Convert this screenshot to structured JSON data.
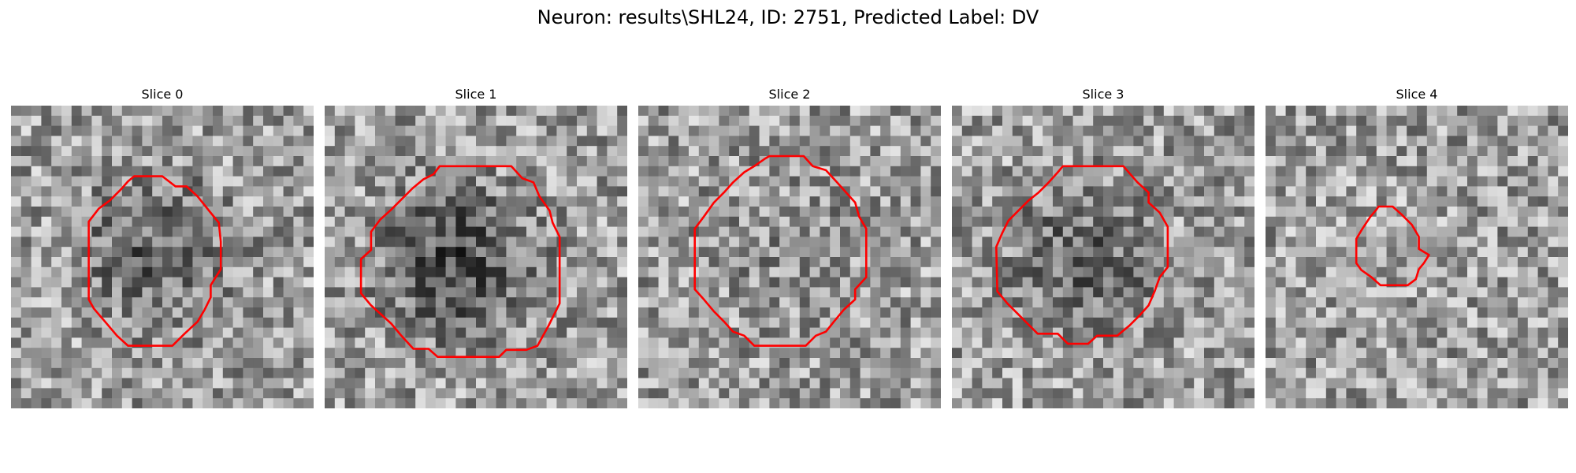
{
  "figure": {
    "title": "Neuron: results\\SHL24, ID: 2751, Predicted Label: DV"
  },
  "panels": [
    {
      "title": "Slice 0",
      "seed": 11,
      "dark_bias": 0.25,
      "outline_color": "#ff0000",
      "outline": [
        [
          12.2,
          7.0
        ],
        [
          15.0,
          7.0
        ],
        [
          16.3,
          8.0
        ],
        [
          17.4,
          8.0
        ],
        [
          18.5,
          9.0
        ],
        [
          19.7,
          10.5
        ],
        [
          20.6,
          11.6
        ],
        [
          20.8,
          13.5
        ],
        [
          20.8,
          16.2
        ],
        [
          19.8,
          17.8
        ],
        [
          19.8,
          19.0
        ],
        [
          19.2,
          20.2
        ],
        [
          18.5,
          21.4
        ],
        [
          17.2,
          22.6
        ],
        [
          16.0,
          23.8
        ],
        [
          11.6,
          23.8
        ],
        [
          10.5,
          22.8
        ],
        [
          9.4,
          21.5
        ],
        [
          8.2,
          20.1
        ],
        [
          7.7,
          19.2
        ],
        [
          7.7,
          15.0
        ],
        [
          7.7,
          11.5
        ],
        [
          8.7,
          10.2
        ],
        [
          9.8,
          9.4
        ],
        [
          10.9,
          8.3
        ],
        [
          11.6,
          7.5
        ]
      ]
    },
    {
      "title": "Slice 1",
      "seed": 29,
      "dark_bias": 0.35,
      "outline_color": "#ff0000",
      "outline": [
        [
          11.4,
          6.0
        ],
        [
          18.5,
          6.0
        ],
        [
          19.6,
          7.2
        ],
        [
          20.7,
          7.6
        ],
        [
          21.3,
          9.0
        ],
        [
          22.3,
          10.4
        ],
        [
          22.6,
          11.6
        ],
        [
          23.3,
          13.0
        ],
        [
          23.3,
          16.4
        ],
        [
          23.3,
          19.6
        ],
        [
          22.2,
          21.8
        ],
        [
          21.1,
          23.8
        ],
        [
          20.0,
          24.2
        ],
        [
          18.0,
          24.2
        ],
        [
          17.3,
          24.9
        ],
        [
          11.2,
          24.9
        ],
        [
          10.3,
          24.1
        ],
        [
          8.8,
          24.1
        ],
        [
          7.6,
          22.8
        ],
        [
          6.6,
          21.6
        ],
        [
          5.5,
          20.6
        ],
        [
          4.6,
          19.8
        ],
        [
          3.6,
          18.6
        ],
        [
          3.6,
          15.2
        ],
        [
          4.6,
          14.3
        ],
        [
          4.6,
          12.5
        ],
        [
          5.5,
          11.3
        ],
        [
          6.6,
          10.3
        ],
        [
          7.7,
          9.2
        ],
        [
          8.7,
          8.2
        ],
        [
          9.8,
          7.3
        ],
        [
          10.8,
          6.8
        ]
      ]
    },
    {
      "title": "Slice 2",
      "seed": 47,
      "dark_bias": 0.05,
      "outline_color": "#ff0000",
      "outline": [
        [
          13.0,
          5.0
        ],
        [
          16.4,
          5.0
        ],
        [
          17.3,
          6.0
        ],
        [
          18.6,
          6.4
        ],
        [
          19.7,
          7.6
        ],
        [
          20.6,
          8.6
        ],
        [
          21.5,
          9.6
        ],
        [
          21.9,
          11.0
        ],
        [
          22.6,
          12.2
        ],
        [
          22.6,
          17.0
        ],
        [
          21.5,
          18.2
        ],
        [
          21.5,
          19.2
        ],
        [
          20.4,
          20.2
        ],
        [
          19.4,
          21.4
        ],
        [
          18.6,
          22.4
        ],
        [
          17.6,
          22.8
        ],
        [
          16.6,
          23.8
        ],
        [
          11.5,
          23.8
        ],
        [
          10.5,
          22.8
        ],
        [
          9.4,
          22.4
        ],
        [
          8.5,
          21.4
        ],
        [
          7.5,
          20.4
        ],
        [
          6.5,
          19.2
        ],
        [
          5.6,
          18.2
        ],
        [
          5.6,
          12.2
        ],
        [
          6.5,
          11.0
        ],
        [
          7.5,
          9.6
        ],
        [
          8.5,
          8.6
        ],
        [
          9.4,
          7.6
        ],
        [
          10.5,
          6.6
        ],
        [
          11.5,
          6.0
        ],
        [
          12.5,
          5.3
        ]
      ]
    },
    {
      "title": "Slice 3",
      "seed": 63,
      "dark_bias": 0.22,
      "outline_color": "#ff0000",
      "outline": [
        [
          11.0,
          6.0
        ],
        [
          17.0,
          6.0
        ],
        [
          18.4,
          7.6
        ],
        [
          19.5,
          8.6
        ],
        [
          19.5,
          9.6
        ],
        [
          20.6,
          10.6
        ],
        [
          21.4,
          12.0
        ],
        [
          21.4,
          16.0
        ],
        [
          20.6,
          17.0
        ],
        [
          20.1,
          18.4
        ],
        [
          19.5,
          19.8
        ],
        [
          18.6,
          20.8
        ],
        [
          17.6,
          21.8
        ],
        [
          16.4,
          22.8
        ],
        [
          14.4,
          22.8
        ],
        [
          13.5,
          23.6
        ],
        [
          11.5,
          23.6
        ],
        [
          10.5,
          22.6
        ],
        [
          8.5,
          22.6
        ],
        [
          7.5,
          21.6
        ],
        [
          6.5,
          20.6
        ],
        [
          5.5,
          19.6
        ],
        [
          4.5,
          18.4
        ],
        [
          4.4,
          14.0
        ],
        [
          5.0,
          12.6
        ],
        [
          5.6,
          11.4
        ],
        [
          6.6,
          10.4
        ],
        [
          7.6,
          9.4
        ],
        [
          8.6,
          8.6
        ],
        [
          9.6,
          7.6
        ],
        [
          10.5,
          6.6
        ]
      ]
    },
    {
      "title": "Slice 4",
      "seed": 85,
      "dark_bias": -0.05,
      "outline_color": "#ff0000",
      "outline": [
        [
          11.2,
          10.0
        ],
        [
          12.6,
          10.0
        ],
        [
          13.5,
          10.8
        ],
        [
          14.5,
          11.8
        ],
        [
          15.2,
          13.0
        ],
        [
          15.2,
          14.2
        ],
        [
          16.2,
          14.8
        ],
        [
          15.7,
          15.6
        ],
        [
          15.2,
          16.2
        ],
        [
          14.9,
          17.2
        ],
        [
          14.1,
          17.8
        ],
        [
          12.8,
          17.8
        ],
        [
          11.4,
          17.8
        ],
        [
          10.5,
          17.0
        ],
        [
          9.5,
          16.3
        ],
        [
          9.0,
          15.6
        ],
        [
          9.0,
          13.2
        ],
        [
          9.6,
          12.2
        ],
        [
          10.4,
          11.0
        ],
        [
          11.0,
          10.3
        ]
      ]
    }
  ]
}
